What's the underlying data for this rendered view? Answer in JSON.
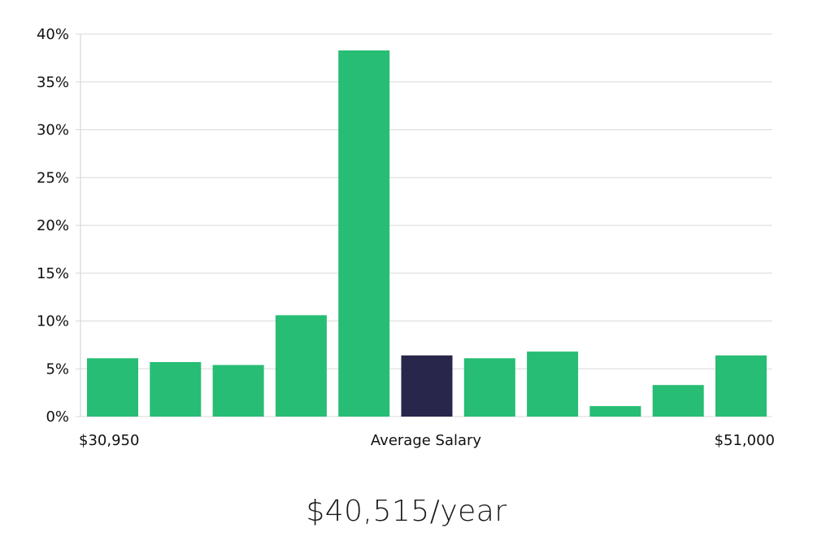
{
  "chart_data": {
    "type": "bar",
    "categories": [
      "",
      "",
      "",
      "",
      "",
      "",
      "",
      "",
      "",
      "",
      ""
    ],
    "values": [
      6.1,
      5.7,
      5.4,
      10.6,
      38.3,
      6.4,
      6.1,
      6.8,
      1.1,
      3.3,
      6.4
    ],
    "highlight_index": 5,
    "ylim": [
      0,
      40
    ],
    "yticks": [
      0,
      5,
      10,
      15,
      20,
      25,
      30,
      35,
      40
    ],
    "ytick_labels": [
      "0%",
      "5%",
      "10%",
      "15%",
      "20%",
      "25%",
      "30%",
      "35%",
      "40%"
    ],
    "x_left_label": "$30,950",
    "x_center_label": "Average Salary",
    "x_right_label": "$51,000",
    "grid": true,
    "colors": {
      "bar": "#27bd74",
      "highlight": "#28264a",
      "grid": "#d9d9d9",
      "text": "#111111"
    }
  },
  "salary_caption": "$40,515/year"
}
